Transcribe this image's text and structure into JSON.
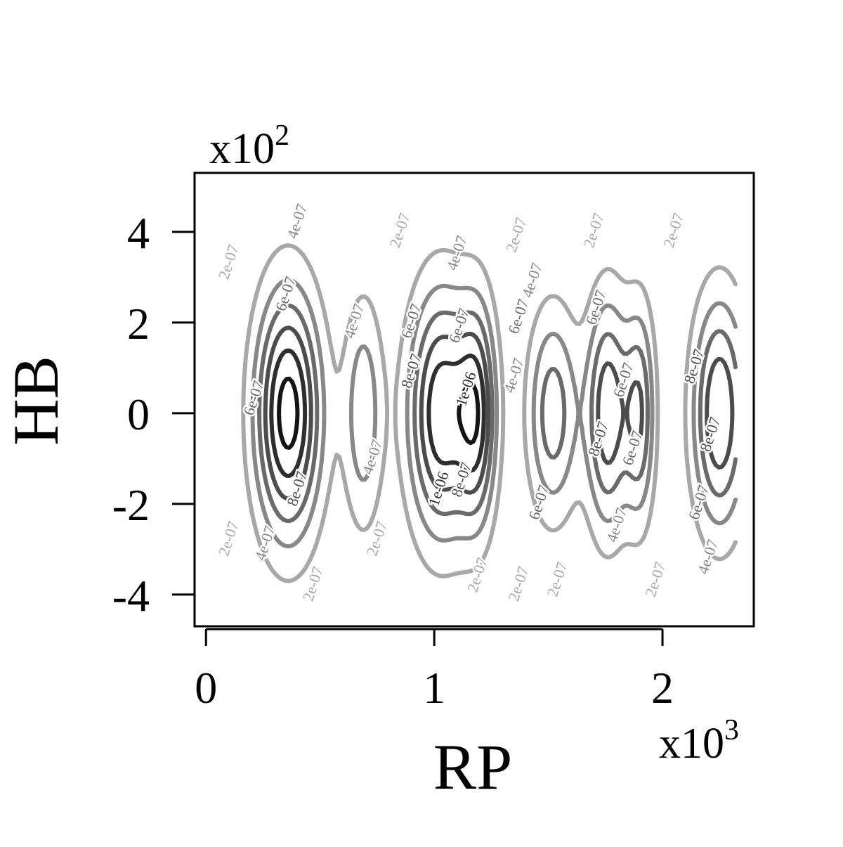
{
  "chart_data": {
    "type": "contour",
    "title": "",
    "xlabel": "RP",
    "ylabel": "HB",
    "x_multiplier": "x10",
    "x_multiplier_exp": "3",
    "y_multiplier": "x10",
    "y_multiplier_exp": "2",
    "xlim": [
      -0.05,
      2.4
    ],
    "ylim": [
      -4.7,
      5.3
    ],
    "x_ticks": [
      0,
      1,
      2
    ],
    "x_tick_labels": [
      "0",
      "1",
      "2"
    ],
    "y_ticks": [
      -4,
      -2,
      0,
      2,
      4
    ],
    "y_tick_labels": [
      "-4",
      "-2",
      "0",
      "2",
      "4"
    ],
    "grid": false,
    "legend": "none",
    "data_x_range": [
      0.12,
      2.32
    ],
    "data_y_range": [
      -4.4,
      4.8
    ],
    "contour_levels": [
      {
        "level": 2e-07,
        "label": "2e-07",
        "color": "#a8a8a8"
      },
      {
        "level": 4e-07,
        "label": "4e-07",
        "color": "#888888"
      },
      {
        "level": 6e-07,
        "label": "6e-07",
        "color": "#6a6a6a"
      },
      {
        "level": 8e-07,
        "label": "8e-07",
        "color": "#4c4c4c"
      },
      {
        "level": 1e-06,
        "label": "1e-06",
        "color": "#2e2e2e"
      },
      {
        "level": 1.2e-06,
        "label": "",
        "color": "#141414"
      }
    ],
    "peaks": [
      {
        "x": 0.36,
        "y": 0.0,
        "peak": 1.3e-06,
        "x_half_width": 0.17,
        "y_half_height": 3.2
      },
      {
        "x": 0.69,
        "y": 0.0,
        "peak": 5.5e-07,
        "x_half_width": 0.1,
        "y_half_height": 3.0
      },
      {
        "x": 1.03,
        "y": 0.0,
        "peak": 1.15e-06,
        "x_half_width": 0.17,
        "y_half_height": 3.2
      },
      {
        "x": 1.19,
        "y": 0.0,
        "peak": 8.8e-07,
        "x_half_width": 0.1,
        "y_half_height": 2.9
      },
      {
        "x": 1.52,
        "y": 0.0,
        "peak": 7.2e-07,
        "x_half_width": 0.13,
        "y_half_height": 2.7
      },
      {
        "x": 1.76,
        "y": 0.0,
        "peak": 9.5e-07,
        "x_half_width": 0.11,
        "y_half_height": 3.0
      },
      {
        "x": 1.9,
        "y": 0.0,
        "peak": 7.5e-07,
        "x_half_width": 0.08,
        "y_half_height": 2.8
      },
      {
        "x": 2.25,
        "y": 0.0,
        "peak": 1e-06,
        "x_half_width": 0.14,
        "y_half_height": 3.0
      }
    ],
    "contour_labels": [
      {
        "text": "2e-07",
        "x": 0.12,
        "y": 3.3,
        "level": 2e-07
      },
      {
        "text": "4e-07",
        "x": 0.42,
        "y": 4.2,
        "level": 4e-07
      },
      {
        "text": "6e-07",
        "x": 0.37,
        "y": 2.6,
        "level": 6e-07
      },
      {
        "text": "6e-07",
        "x": 0.23,
        "y": 0.3,
        "level": 6e-07
      },
      {
        "text": "8e-07",
        "x": 0.42,
        "y": -1.7,
        "level": 8e-07
      },
      {
        "text": "4e-07",
        "x": 0.28,
        "y": -2.9,
        "level": 4e-07
      },
      {
        "text": "2e-07",
        "x": 0.12,
        "y": -2.8,
        "level": 2e-07
      },
      {
        "text": "2e-07",
        "x": 0.49,
        "y": -3.8,
        "level": 2e-07
      },
      {
        "text": "4e-07",
        "x": 0.67,
        "y": 2.0,
        "level": 4e-07
      },
      {
        "text": "4e-07",
        "x": 0.75,
        "y": -1.0,
        "level": 4e-07
      },
      {
        "text": "2e-07",
        "x": 0.77,
        "y": -2.8,
        "level": 2e-07
      },
      {
        "text": "2e-07",
        "x": 0.87,
        "y": 4.0,
        "level": 2e-07
      },
      {
        "text": "6e-07",
        "x": 0.92,
        "y": 2.0,
        "level": 6e-07
      },
      {
        "text": "8e-07",
        "x": 0.92,
        "y": 0.9,
        "level": 8e-07
      },
      {
        "text": "4e-07",
        "x": 1.12,
        "y": 3.5,
        "level": 4e-07
      },
      {
        "text": "6e-07",
        "x": 1.13,
        "y": 1.9,
        "level": 6e-07
      },
      {
        "text": "1e-06",
        "x": 1.16,
        "y": 0.5,
        "level": 1e-06
      },
      {
        "text": "8e-07",
        "x": 1.14,
        "y": -1.5,
        "level": 8e-07
      },
      {
        "text": "1e-06",
        "x": 1.04,
        "y": -1.7,
        "level": 1e-06
      },
      {
        "text": "2e-07",
        "x": 1.21,
        "y": -3.6,
        "level": 2e-07
      },
      {
        "text": "2e-07",
        "x": 1.38,
        "y": 3.9,
        "level": 2e-07
      },
      {
        "text": "4e-07",
        "x": 1.45,
        "y": 2.9,
        "level": 4e-07
      },
      {
        "text": "6e-07",
        "x": 1.39,
        "y": 2.1,
        "level": 6e-07
      },
      {
        "text": "4e-07",
        "x": 1.37,
        "y": 0.8,
        "level": 4e-07
      },
      {
        "text": "6e-07",
        "x": 1.48,
        "y": -2.0,
        "level": 6e-07
      },
      {
        "text": "2e-07",
        "x": 1.39,
        "y": -3.8,
        "level": 2e-07
      },
      {
        "text": "2e-07",
        "x": 1.56,
        "y": -3.7,
        "level": 2e-07
      },
      {
        "text": "2e-07",
        "x": 1.72,
        "y": 4.0,
        "level": 2e-07
      },
      {
        "text": "6e-07",
        "x": 1.73,
        "y": 2.3,
        "level": 6e-07
      },
      {
        "text": "6e-07",
        "x": 1.85,
        "y": 0.7,
        "level": 6e-07
      },
      {
        "text": "8e-07",
        "x": 1.74,
        "y": -0.6,
        "level": 8e-07
      },
      {
        "text": "6e-07",
        "x": 1.89,
        "y": -0.8,
        "level": 6e-07
      },
      {
        "text": "4e-07",
        "x": 1.82,
        "y": -2.5,
        "level": 4e-07
      },
      {
        "text": "2e-07",
        "x": 1.99,
        "y": -3.7,
        "level": 2e-07
      },
      {
        "text": "2e-07",
        "x": 2.07,
        "y": 4.0,
        "level": 2e-07
      },
      {
        "text": "8e-07",
        "x": 2.16,
        "y": 1.0,
        "level": 8e-07
      },
      {
        "text": "8e-07",
        "x": 2.23,
        "y": -0.5,
        "level": 8e-07
      },
      {
        "text": "6e-07",
        "x": 2.18,
        "y": -2.0,
        "level": 6e-07
      },
      {
        "text": "4e-07",
        "x": 2.22,
        "y": -3.2,
        "level": 4e-07
      }
    ]
  }
}
